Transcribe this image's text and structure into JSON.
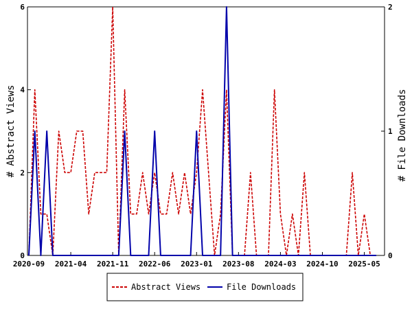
{
  "chart_data": {
    "type": "line",
    "title": "",
    "y_left_label": "# Abstract Views",
    "y_right_label": "# File Downloads",
    "y_left_lim": [
      0,
      6
    ],
    "y_right_lim": [
      0,
      2
    ],
    "y_left_ticks": [
      "0",
      "2",
      "4",
      "6"
    ],
    "y_right_ticks": [
      "0",
      "1",
      "2"
    ],
    "x_ticks": [
      "2020-09",
      "2021-04",
      "2021-11",
      "2022-06",
      "2023-01",
      "2023-08",
      "2024-03",
      "2024-10",
      "2025-05"
    ],
    "legend_position": "bottom",
    "grid": false,
    "series": [
      {
        "name": "Abstract Views",
        "axis": "left",
        "color": "#cc0000",
        "style": "dashed",
        "x": [
          "2020-09",
          "2020-10",
          "2020-11",
          "2020-12",
          "2021-01",
          "2021-02",
          "2021-03",
          "2021-04",
          "2021-05",
          "2021-06",
          "2021-07",
          "2021-08",
          "2021-09",
          "2021-10",
          "2021-11",
          "2021-12",
          "2022-01",
          "2022-02",
          "2022-03",
          "2022-04",
          "2022-05",
          "2022-06",
          "2022-07",
          "2022-08",
          "2022-09",
          "2022-10",
          "2022-11",
          "2022-12",
          "2023-01",
          "2023-02",
          "2023-03",
          "2023-04",
          "2023-05",
          "2023-06",
          "2023-07",
          "2023-08",
          "2023-09",
          "2023-10",
          "2023-11",
          "2023-12",
          "2024-01",
          "2024-02",
          "2024-03",
          "2024-04",
          "2024-05",
          "2024-06",
          "2024-07",
          "2024-08",
          "2024-09",
          "2024-10",
          "2024-11",
          "2024-12",
          "2025-01",
          "2025-02",
          "2025-03",
          "2025-04",
          "2025-05",
          "2025-06",
          "2025-07"
        ],
        "values": [
          0,
          4,
          1,
          1,
          0,
          3,
          2,
          2,
          3,
          3,
          1,
          2,
          2,
          2,
          6,
          0,
          4,
          1,
          1,
          2,
          1,
          2,
          1,
          1,
          2,
          1,
          2,
          1,
          2,
          4,
          2,
          0,
          1,
          4,
          0,
          0,
          0,
          2,
          0,
          0,
          0,
          4,
          1,
          0,
          1,
          0,
          2,
          0,
          0,
          0,
          0,
          0,
          0,
          0,
          2,
          0,
          1,
          0,
          0
        ]
      },
      {
        "name": "File Downloads",
        "axis": "right",
        "color": "#0000aa",
        "style": "solid",
        "x": [
          "2020-09",
          "2020-10",
          "2020-11",
          "2020-12",
          "2021-01",
          "2021-02",
          "2021-03",
          "2021-04",
          "2021-05",
          "2021-06",
          "2021-07",
          "2021-08",
          "2021-09",
          "2021-10",
          "2021-11",
          "2021-12",
          "2022-01",
          "2022-02",
          "2022-03",
          "2022-04",
          "2022-05",
          "2022-06",
          "2022-07",
          "2022-08",
          "2022-09",
          "2022-10",
          "2022-11",
          "2022-12",
          "2023-01",
          "2023-02",
          "2023-03",
          "2023-04",
          "2023-05",
          "2023-06",
          "2023-07",
          "2023-08",
          "2023-09",
          "2023-10",
          "2023-11",
          "2023-12",
          "2024-01",
          "2024-02",
          "2024-03",
          "2024-04",
          "2024-05",
          "2024-06",
          "2024-07",
          "2024-08",
          "2024-09",
          "2024-10",
          "2024-11",
          "2024-12",
          "2025-01",
          "2025-02",
          "2025-03",
          "2025-04",
          "2025-05",
          "2025-06",
          "2025-07"
        ],
        "values": [
          0,
          1,
          0,
          1,
          0,
          0,
          0,
          0,
          0,
          0,
          0,
          0,
          0,
          0,
          0,
          0,
          1,
          0,
          0,
          0,
          0,
          1,
          0,
          0,
          0,
          0,
          0,
          0,
          1,
          0,
          0,
          0,
          0,
          2,
          0,
          0,
          0,
          0,
          0,
          0,
          0,
          0,
          0,
          0,
          0,
          0,
          0,
          0,
          0,
          0,
          0,
          0,
          0,
          0,
          0,
          0,
          0,
          0,
          0
        ]
      }
    ]
  },
  "legend": {
    "items": [
      {
        "label": "Abstract Views"
      },
      {
        "label": "File Downloads"
      }
    ]
  }
}
